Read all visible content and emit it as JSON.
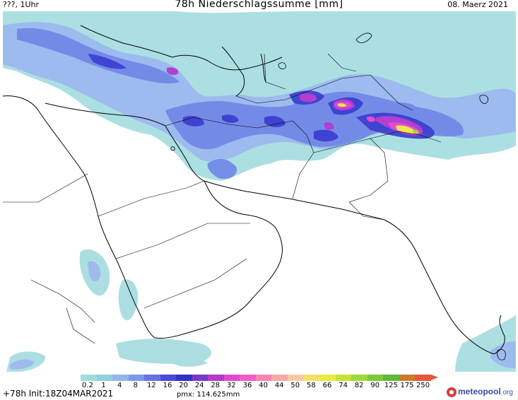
{
  "header": {
    "left": "???, 1Uhr",
    "title": "78h Niederschlagssumme [mm]",
    "right": "08. Maerz 2021"
  },
  "legend": {
    "labels": [
      "0.2",
      "1",
      "4",
      "8",
      "12",
      "16",
      "20",
      "24",
      "28",
      "32",
      "36",
      "40",
      "44",
      "50",
      "58",
      "66",
      "74",
      "82",
      "90",
      "125",
      "175",
      "250"
    ],
    "colors": [
      "#9fdcdc",
      "#8fd0df",
      "#94b7ea",
      "#7f97ea",
      "#6a72e2",
      "#4a4ad8",
      "#3232c8",
      "#7a38c8",
      "#b43cc8",
      "#e049d2",
      "#f25ec8",
      "#f786b0",
      "#f7a8a8",
      "#f9c9a3",
      "#f7e06a",
      "#e9ea3d",
      "#c6e23a",
      "#9fd83a",
      "#7bc93a",
      "#5fb83a",
      "#cf7a2a",
      "#e4573c"
    ]
  },
  "footer": {
    "run": "+78h Init:18Z04MAR2021",
    "pmx": "pmx: 114.625mm",
    "brand": "meteopool",
    "brand_tld": ".org"
  },
  "colors": {
    "light_cyan": "#a8dde0",
    "light_blue": "#9cb8ee",
    "blue": "#6f86e6",
    "deep_blue": "#3a3ccf",
    "purple": "#b13fd0",
    "magenta": "#e44bd0",
    "yellow": "#f1e84a",
    "green": "#9bd64a"
  }
}
